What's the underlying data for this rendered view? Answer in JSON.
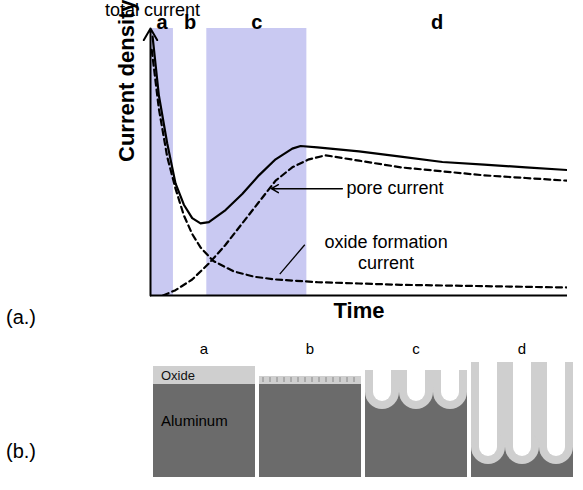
{
  "chart_data": {
    "type": "line",
    "x_label": "Time",
    "y_label": "Current density",
    "xlim": [
      0,
      100
    ],
    "ylim": [
      0,
      100
    ],
    "xticks": [],
    "yticks": [],
    "tick_labels": false,
    "regions": [
      {
        "label": "a",
        "x": [
          0,
          5.5
        ],
        "color": "#c9c9f2"
      },
      {
        "label": "b",
        "x": [
          5.5,
          13.5
        ]
      },
      {
        "label": "c",
        "x": [
          13.5,
          37.5
        ],
        "color": "#c9c9f2"
      },
      {
        "label": "d",
        "x": [
          37.5,
          100
        ]
      }
    ],
    "series": [
      {
        "name": "total current",
        "color": "#000000",
        "line_style": "solid",
        "x": [
          0.5,
          2,
          4,
          6,
          8,
          10,
          12,
          14,
          18,
          22,
          26,
          30,
          34,
          36,
          40,
          50,
          60,
          70,
          80,
          90,
          100
        ],
        "values": [
          97,
          75,
          57,
          42,
          34,
          29,
          27,
          27.5,
          32,
          38,
          45,
          51,
          55,
          56,
          55.5,
          54,
          52,
          50,
          49,
          48,
          47
        ]
      },
      {
        "name": "pore current",
        "color": "#000000",
        "line_style": "dashed",
        "x": [
          3,
          6,
          10,
          14,
          18,
          22,
          26,
          30,
          34,
          38,
          42,
          50,
          60,
          70,
          80,
          90,
          100
        ],
        "values": [
          0,
          2,
          6,
          12,
          19,
          27,
          35,
          43,
          48,
          51,
          52.5,
          50.5,
          48,
          46.5,
          45,
          44,
          43
        ]
      },
      {
        "name": "oxide formation current",
        "color": "#000000",
        "line_style": "dashed",
        "x": [
          0.3,
          2,
          4,
          6,
          8,
          10,
          12,
          15,
          20,
          25,
          30,
          40,
          50,
          60,
          80,
          100
        ],
        "values": [
          92,
          70,
          52,
          40,
          30,
          23,
          18,
          13,
          9,
          7,
          6,
          5,
          4.5,
          4,
          3.5,
          3
        ]
      }
    ]
  },
  "figure_labels": {
    "chart": "(a.)",
    "diagram": "(b.)"
  },
  "diagram": {
    "stages": [
      "a",
      "b",
      "c",
      "d"
    ],
    "layers": {
      "oxide": "Oxide",
      "metal": "Aluminum"
    }
  }
}
